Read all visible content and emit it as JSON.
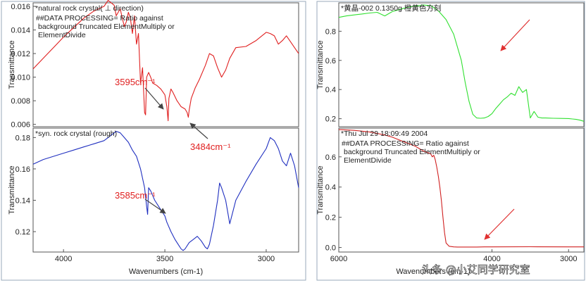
{
  "watermark": "头条 @小艾同学研究室",
  "chart_data": [
    {
      "type": "line",
      "panel": "left-top",
      "title": "*natural rock crystal( ⊥ direction)",
      "notes": [
        "##DATA PROCESSING= Ratio against",
        "background Truncated ElementMultiply or",
        "ElementDivide"
      ],
      "ylabel": "Transmittance",
      "xlabel": "",
      "xlim": [
        4150,
        2840
      ],
      "ylim": [
        0.0058,
        0.0163
      ],
      "yticks": [
        0.006,
        0.008,
        0.01,
        0.012,
        0.014,
        0.016
      ],
      "ytick_labels": [
        "0.006",
        "0.008",
        "0.010",
        "0.012",
        "0.014",
        "0.016"
      ],
      "color": "#e02020",
      "series": [
        {
          "name": "natural rock crystal",
          "x": [
            4150,
            4100,
            4050,
            4000,
            3950,
            3900,
            3850,
            3800,
            3780,
            3750,
            3740,
            3720,
            3710,
            3700,
            3690,
            3680,
            3670,
            3660,
            3650,
            3640,
            3630,
            3620,
            3610,
            3600,
            3595,
            3590,
            3580,
            3570,
            3560,
            3540,
            3520,
            3500,
            3490,
            3484,
            3480,
            3470,
            3460,
            3440,
            3420,
            3400,
            3390,
            3384,
            3380,
            3370,
            3350,
            3330,
            3300,
            3280,
            3260,
            3240,
            3220,
            3200,
            3180,
            3150,
            3100,
            3050,
            3000,
            2980,
            2960,
            2940,
            2920,
            2900,
            2880,
            2860,
            2840
          ],
          "y": [
            0.0107,
            0.0116,
            0.0125,
            0.0134,
            0.0142,
            0.015,
            0.0156,
            0.016,
            0.0165,
            0.0161,
            0.0152,
            0.0158,
            0.015,
            0.0143,
            0.0147,
            0.0155,
            0.015,
            0.0137,
            0.0152,
            0.0128,
            0.0137,
            0.0095,
            0.0108,
            0.007,
            0.0068,
            0.01,
            0.0104,
            0.01,
            0.0095,
            0.0093,
            0.009,
            0.0085,
            0.0075,
            0.0063,
            0.0082,
            0.009,
            0.0087,
            0.008,
            0.0075,
            0.0073,
            0.007,
            0.0066,
            0.0072,
            0.0082,
            0.0091,
            0.0098,
            0.011,
            0.012,
            0.0118,
            0.0108,
            0.01,
            0.0106,
            0.0116,
            0.0125,
            0.0126,
            0.0131,
            0.0138,
            0.0137,
            0.0135,
            0.0128,
            0.0131,
            0.0135,
            0.013,
            0.0125,
            0.012
          ]
        }
      ],
      "annotations": [
        {
          "text": "3595cm⁻¹",
          "x": 3595,
          "y": 0.0068
        },
        {
          "text": "3484cm⁻¹",
          "x": 3484,
          "y": 0.0063
        }
      ]
    },
    {
      "type": "line",
      "panel": "left-bottom",
      "title": "*syn. rock crystal (rough)",
      "ylabel": "Transmittance",
      "xlabel": "Wavenumbers (cm-1)",
      "xlim": [
        4150,
        2840
      ],
      "ylim": [
        0.107,
        0.186
      ],
      "yticks": [
        0.12,
        0.14,
        0.16,
        0.18
      ],
      "ytick_labels": [
        "0.12",
        "0.14",
        "0.16",
        "0.18"
      ],
      "xticks": [
        4000,
        3500,
        3000
      ],
      "xtick_labels": [
        "4000",
        "3500",
        "3000"
      ],
      "color": "#2030c0",
      "series": [
        {
          "name": "syn. rock crystal",
          "x": [
            4150,
            4100,
            4050,
            4000,
            3950,
            3900,
            3850,
            3800,
            3780,
            3760,
            3740,
            3720,
            3700,
            3680,
            3660,
            3640,
            3620,
            3600,
            3590,
            3585,
            3580,
            3570,
            3560,
            3550,
            3530,
            3510,
            3500,
            3490,
            3470,
            3450,
            3430,
            3420,
            3410,
            3400,
            3380,
            3360,
            3340,
            3320,
            3300,
            3290,
            3280,
            3260,
            3240,
            3230,
            3220,
            3200,
            3180,
            3150,
            3100,
            3050,
            3000,
            2980,
            2960,
            2940,
            2920,
            2900,
            2880,
            2860,
            2840
          ],
          "y": [
            0.163,
            0.166,
            0.168,
            0.17,
            0.172,
            0.174,
            0.176,
            0.178,
            0.18,
            0.182,
            0.184,
            0.183,
            0.18,
            0.177,
            0.172,
            0.168,
            0.16,
            0.148,
            0.136,
            0.131,
            0.148,
            0.146,
            0.143,
            0.14,
            0.136,
            0.132,
            0.13,
            0.126,
            0.12,
            0.115,
            0.111,
            0.109,
            0.108,
            0.109,
            0.113,
            0.115,
            0.117,
            0.114,
            0.11,
            0.109,
            0.112,
            0.124,
            0.14,
            0.151,
            0.148,
            0.14,
            0.125,
            0.14,
            0.152,
            0.163,
            0.173,
            0.18,
            0.178,
            0.173,
            0.165,
            0.162,
            0.17,
            0.162,
            0.148
          ]
        }
      ],
      "annotations": [
        {
          "text": "3585cm⁻¹",
          "x": 3585,
          "y": 0.131
        }
      ]
    },
    {
      "type": "line",
      "panel": "right-top",
      "title": "*黄晶-002 0.1350g 橙黄色方刻",
      "ylabel": "Transmittance",
      "xlabel": "",
      "xlim": [
        6000,
        2800
      ],
      "ylim": [
        0.145,
        0.995
      ],
      "yticks": [
        0.2,
        0.4,
        0.6,
        0.8
      ],
      "ytick_labels": [
        "0.2",
        "0.4",
        "0.6",
        "0.8"
      ],
      "color": "#30e030",
      "series": [
        {
          "name": "黄晶-002",
          "x": [
            6000,
            5900,
            5800,
            5700,
            5600,
            5500,
            5400,
            5300,
            5200,
            5100,
            5000,
            4900,
            4800,
            4700,
            4600,
            4500,
            4400,
            4350,
            4300,
            4250,
            4200,
            4150,
            4100,
            4050,
            4000,
            3950,
            3900,
            3850,
            3800,
            3750,
            3700,
            3650,
            3600,
            3550,
            3500,
            3450,
            3400,
            3350,
            3300,
            3250,
            3200,
            3100,
            3000,
            2950,
            2900,
            2850,
            2800
          ],
          "y": [
            0.895,
            0.905,
            0.912,
            0.918,
            0.925,
            0.93,
            0.905,
            0.935,
            0.95,
            0.965,
            0.972,
            0.98,
            0.975,
            0.94,
            0.88,
            0.78,
            0.6,
            0.45,
            0.32,
            0.23,
            0.205,
            0.203,
            0.205,
            0.215,
            0.235,
            0.27,
            0.3,
            0.33,
            0.35,
            0.375,
            0.36,
            0.42,
            0.38,
            0.4,
            0.205,
            0.25,
            0.21,
            0.205,
            0.205,
            0.204,
            0.203,
            0.202,
            0.201,
            0.198,
            0.195,
            0.19,
            0.182
          ]
        }
      ],
      "annotations": [
        {
          "text": "",
          "x": 4100,
          "y": 0.72
        }
      ]
    },
    {
      "type": "line",
      "panel": "right-bottom",
      "title": "*Thu Jul 29 18:09:49 2004",
      "notes": [
        "##DATA PROCESSING= Ratio against",
        "background Truncated ElementMultiply or",
        "ElementDivide"
      ],
      "ylabel": "Transmittance",
      "xlabel": "Wavenumbers (cm-1)",
      "xlim": [
        6000,
        2800
      ],
      "ylim": [
        -0.03,
        0.79
      ],
      "yticks": [
        0.0,
        0.2,
        0.4,
        0.6
      ],
      "ytick_labels": [
        "0.0",
        "0.2",
        "0.4",
        "0.6"
      ],
      "xticks": [
        6000,
        4000,
        3000
      ],
      "xtick_labels": [
        "6000",
        "4000",
        "3000"
      ],
      "color": "#d02020",
      "series": [
        {
          "name": "Thu Jul 29 18:09:49 2004",
          "x": [
            6000,
            5900,
            5800,
            5700,
            5600,
            5500,
            5400,
            5300,
            5200,
            5100,
            5000,
            4950,
            4900,
            4850,
            4800,
            4780,
            4760,
            4740,
            4720,
            4700,
            4680,
            4660,
            4640,
            4620,
            4600,
            4560,
            4500,
            4450,
            4400,
            4300,
            4200,
            4100,
            4000,
            3500,
            3000,
            2800
          ],
          "y": [
            0.78,
            0.778,
            0.775,
            0.77,
            0.765,
            0.755,
            0.745,
            0.73,
            0.71,
            0.69,
            0.67,
            0.655,
            0.64,
            0.63,
            0.62,
            0.6,
            0.61,
            0.58,
            0.53,
            0.47,
            0.4,
            0.31,
            0.2,
            0.1,
            0.03,
            0.008,
            0.004,
            0.003,
            0.003,
            0.003,
            0.003,
            0.004,
            0.004,
            0.005,
            0.004,
            0.004
          ]
        }
      ],
      "annotations": [
        {
          "text": "",
          "x": 3900,
          "y": 0.02
        }
      ]
    }
  ]
}
